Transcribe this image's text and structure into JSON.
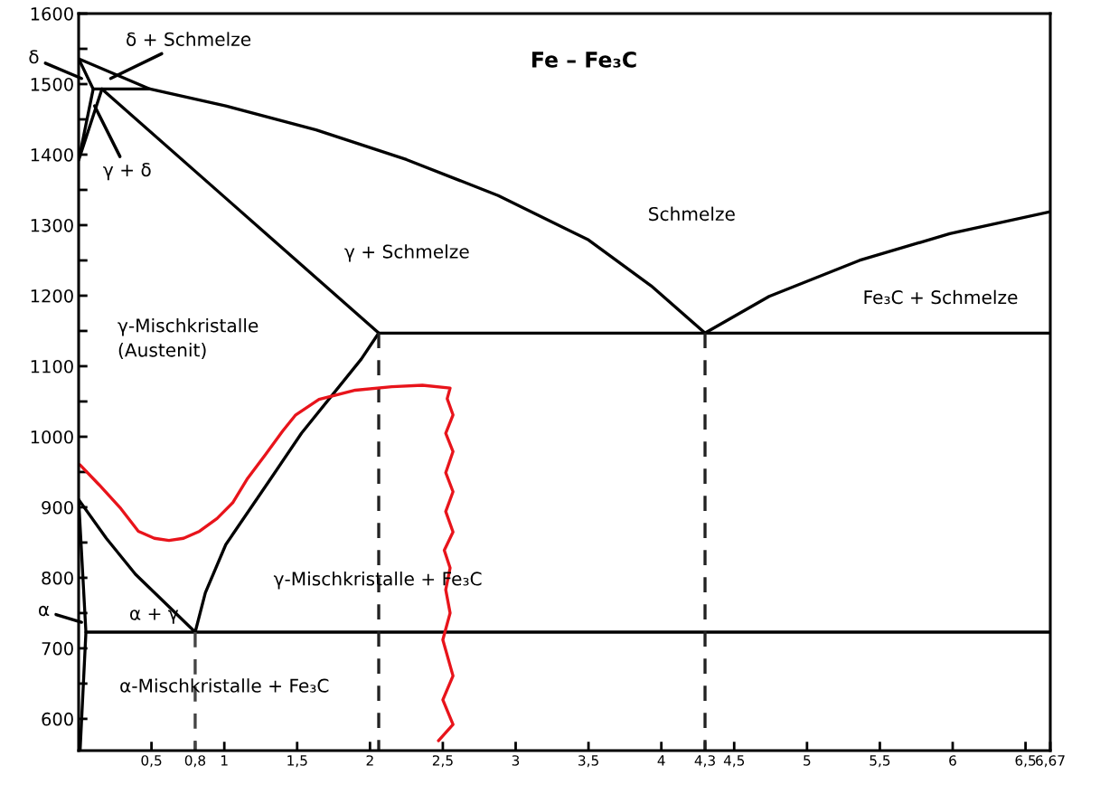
{
  "chart_data": {
    "type": "line",
    "title": "Fe – Fe₃C",
    "xlim": [
      0,
      6.67
    ],
    "ylim": [
      555,
      1600
    ],
    "xticks": [
      {
        "value": 0.5,
        "label": "0,5"
      },
      {
        "value": 0.8,
        "label": "0,8"
      },
      1,
      {
        "value": 1.5,
        "label": "1,5"
      },
      2,
      {
        "value": 2.5,
        "label": "2,5"
      },
      3,
      {
        "value": 3.5,
        "label": "3,5"
      },
      4,
      {
        "value": 4.3,
        "label": "4,3"
      },
      {
        "value": 4.5,
        "label": "4,5"
      },
      5,
      {
        "value": 5.5,
        "label": "5,5"
      },
      6,
      {
        "value": 6.5,
        "label": "6,5"
      },
      {
        "value": 6.67,
        "label": "6,67"
      }
    ],
    "yticks": [
      600,
      {
        "value": 650,
        "label": null
      },
      700,
      {
        "value": 750,
        "label": null
      },
      800,
      {
        "value": 850,
        "label": null
      },
      900,
      {
        "value": 950,
        "label": null
      },
      1000,
      {
        "value": 1050,
        "label": null
      },
      1100,
      {
        "value": 1150,
        "label": null
      },
      1200,
      {
        "value": 1250,
        "label": null
      },
      1300,
      {
        "value": 1350,
        "label": null
      },
      1400,
      {
        "value": 1450,
        "label": null
      },
      1500,
      {
        "value": 1550,
        "label": null
      },
      1600
    ],
    "grid": false,
    "legend": false,
    "series": [
      {
        "color": "#000000",
        "x": [
          0,
          0.49,
          1.01,
          1.63,
          2.25,
          2.88,
          3.5,
          3.93,
          4.3,
          4.74,
          5.36,
          5.98,
          6.67
        ],
        "values": [
          1536,
          1493,
          1469,
          1435,
          1393,
          1342,
          1279,
          1214,
          1147,
          1199,
          1250,
          1288,
          1319
        ]
      },
      {
        "color": "#000000",
        "x": [
          0.1,
          0.49
        ],
        "values": [
          1493,
          1493
        ]
      },
      {
        "color": "#000000",
        "x": [
          0,
          0.1,
          0,
          0.16
        ],
        "values": [
          1536,
          1493,
          1392,
          1493
        ]
      },
      {
        "color": "#000000",
        "x": [
          0.16,
          2.06,
          6.67
        ],
        "values": [
          1493,
          1147,
          1147
        ]
      },
      {
        "color": "#000000",
        "x": [
          0,
          0.19,
          0.39,
          0.6,
          0.8,
          0.87,
          1.01,
          1.32,
          1.53,
          1.94,
          2.06
        ],
        "values": [
          911,
          856,
          805,
          763,
          723,
          779,
          847,
          941,
          1005,
          1110,
          1147
        ]
      },
      {
        "color": "#000000",
        "x": [
          0.01,
          0.05,
          0
        ],
        "values": [
          555,
          723,
          911
        ]
      },
      {
        "color": "#000000",
        "x": [
          0.05,
          6.67
        ],
        "values": [
          723,
          723
        ]
      },
      {
        "color": "#444444",
        "line_style": "dashed",
        "x": [
          0.8,
          0.8
        ],
        "values": [
          723,
          555
        ]
      },
      {
        "color": "#222222",
        "line_style": "dashed",
        "x": [
          2.06,
          2.06
        ],
        "values": [
          1147,
          555
        ]
      },
      {
        "color": "#222222",
        "line_style": "dashed",
        "x": [
          4.3,
          4.3
        ],
        "values": [
          1147,
          555
        ]
      },
      {
        "color": "#e8141b",
        "x": [
          0.01,
          0.14,
          0.29,
          0.41,
          0.52,
          0.62,
          0.72,
          0.83,
          0.95,
          1.06,
          1.16,
          1.28,
          1.4,
          1.49,
          1.65,
          1.9,
          2.15,
          2.36,
          2.55,
          2.53,
          2.57,
          2.52,
          2.57,
          2.52,
          2.57,
          2.52,
          2.57,
          2.51,
          2.55,
          2.52,
          2.55,
          2.5,
          2.57,
          2.5,
          2.57,
          2.47
        ],
        "values": [
          960,
          932,
          898,
          866,
          856,
          853,
          856,
          866,
          884,
          907,
          941,
          974,
          1008,
          1031,
          1053,
          1066,
          1071,
          1073,
          1069,
          1054,
          1031,
          1005,
          979,
          949,
          922,
          894,
          865,
          839,
          814,
          783,
          750,
          712,
          661,
          627,
          592,
          569
        ]
      }
    ],
    "annotations": [
      {
        "text": "δ",
        "x": 0.02,
        "y": 1508
      },
      {
        "text": "δ + Schmelze",
        "x": 0.22,
        "y": 1508
      },
      {
        "text": "γ + δ",
        "x": 0.11,
        "y": 1469
      },
      {
        "text": "α",
        "x": 0.02,
        "y": 737
      },
      "Schmelze",
      "γ + Schmelze",
      "Fe₃C + Schmelze",
      "γ-Mischkristalle\n(Austenit)",
      "γ-Mischkristalle + Fe₃C",
      "α + γ",
      "α-Mischkristalle + Fe₃C"
    ]
  }
}
